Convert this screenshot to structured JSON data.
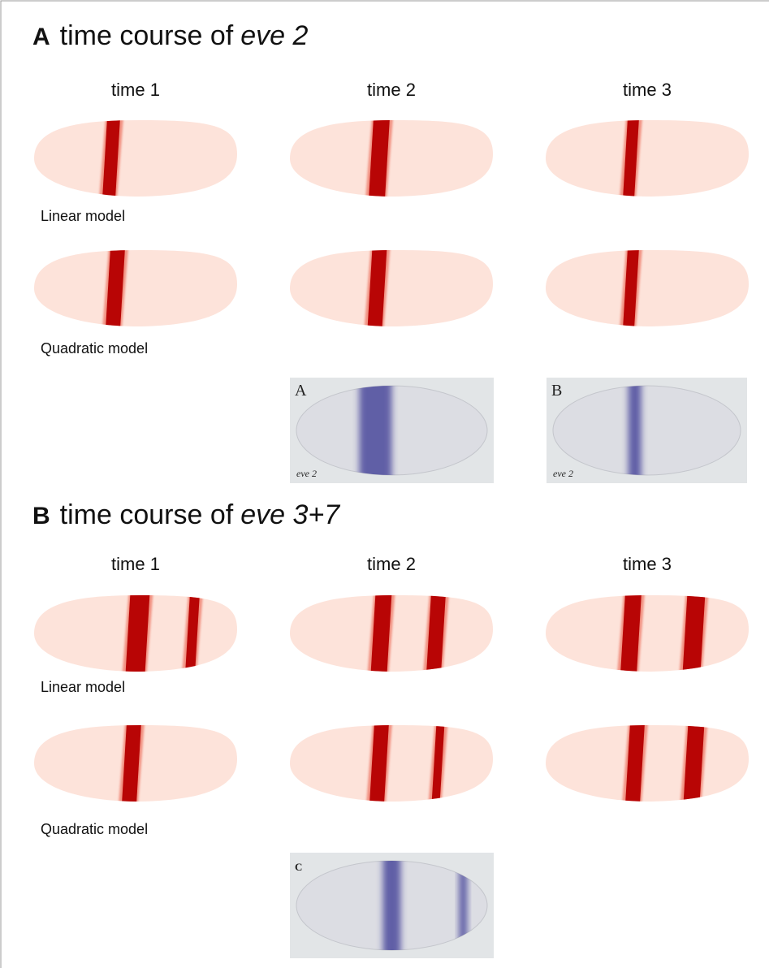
{
  "panels": [
    {
      "letter": "A",
      "title": "time course of",
      "gene": "eve 2",
      "columns": [
        "time 1",
        "time 2",
        "time 3"
      ],
      "rows": [
        "Linear model",
        "Quadratic model"
      ],
      "photos": [
        {
          "letter": "A",
          "caption": "eve 2"
        },
        {
          "letter": "B",
          "caption": "eve 2"
        }
      ]
    },
    {
      "letter": "B",
      "title": "time course of",
      "gene": "eve 3+7",
      "columns": [
        "time 1",
        "time 2",
        "time 3"
      ],
      "rows": [
        "Linear model",
        "Quadratic model"
      ],
      "photos": [
        {
          "letter": "C"
        }
      ]
    }
  ]
}
